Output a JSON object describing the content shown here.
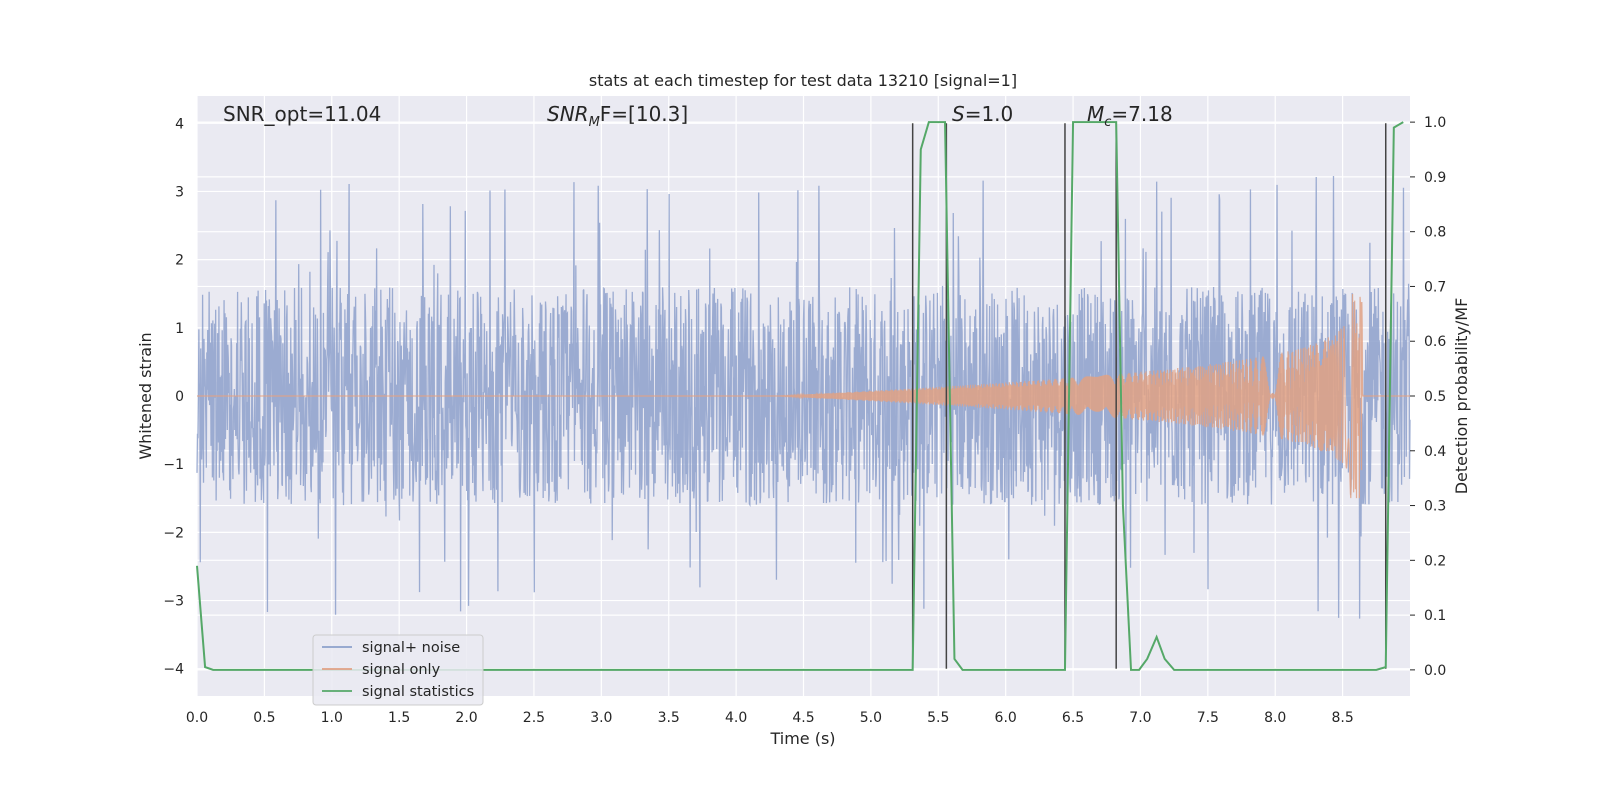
{
  "chart_data": {
    "type": "line",
    "title": "stats at each timestep for test data 13210 [signal=1]",
    "xlabel": "Time (s)",
    "ylabel_left": "Whitened strain",
    "ylabel_right": "Detection probability/MF",
    "xlim": [
      0.0,
      9.0
    ],
    "ylim_left": [
      -4.4,
      4.4
    ],
    "ylim_right": [
      -0.0477,
      1.0477
    ],
    "x_ticks": [
      "0.0",
      "0.5",
      "1.0",
      "1.5",
      "2.0",
      "2.5",
      "3.0",
      "3.5",
      "4.0",
      "4.5",
      "5.0",
      "5.5",
      "6.0",
      "6.5",
      "7.0",
      "7.5",
      "8.0",
      "8.5"
    ],
    "y_left_ticks": [
      "4",
      "3",
      "2",
      "1",
      "0",
      "−1",
      "−2",
      "−3",
      "−4"
    ],
    "y_right_ticks": [
      "1.0",
      "0.9",
      "0.8",
      "0.7",
      "0.6",
      "0.5",
      "0.4",
      "0.3",
      "0.2",
      "0.1",
      "0.0"
    ],
    "grid": true,
    "legend_placement": "lower-left",
    "annotations": {
      "snr_opt": "SNR_opt=11.04",
      "snr_mf_main": "SNR",
      "snr_mf_sub": "M",
      "snr_mf_rest": "F=[10.3]",
      "s_main": "S",
      "s_rest": "=1.0",
      "mc_main": "M",
      "mc_sub": "c",
      "mc_rest": "=7.18"
    },
    "vertical_markers_s": [
      5.31,
      5.56,
      6.44,
      6.82,
      8.82
    ],
    "series": [
      {
        "name": "signal+ noise",
        "color": "#8da0cb",
        "axis": "left",
        "description_values": "noise envelope approx ±1.6, spikes to about ±3.2 (max 4.0)",
        "envelope_core": 1.6
      },
      {
        "name": "signal only",
        "color": "#e0a184",
        "axis": "left",
        "chirp_start_s": 4.3,
        "chirp_peak_s": 8.65,
        "chirp_peak_amp": 1.5
      },
      {
        "name": "signal statistics",
        "color": "#55a868",
        "axis": "right",
        "x": [
          0.0,
          0.06,
          0.12,
          5.31,
          5.37,
          5.43,
          5.55,
          5.62,
          5.68,
          6.44,
          6.5,
          6.82,
          6.87,
          6.93,
          6.99,
          7.05,
          7.12,
          7.18,
          7.25,
          7.31,
          8.75,
          8.82,
          8.88,
          8.95
        ],
        "y": [
          0.19,
          0.005,
          0.0,
          0.0,
          0.95,
          1.0,
          1.0,
          0.02,
          0.0,
          0.0,
          1.0,
          1.0,
          0.3,
          0.0,
          0.0,
          0.02,
          0.06,
          0.02,
          0.0,
          0.0,
          0.0,
          0.005,
          0.99,
          1.0
        ]
      }
    ]
  },
  "legend": {
    "items": [
      {
        "label": "signal+ noise",
        "color": "#8da0cb"
      },
      {
        "label": "signal only",
        "color": "#e0a184"
      },
      {
        "label": "signal statistics",
        "color": "#55a868"
      }
    ]
  },
  "colors": {
    "plot_background": "#eaeaf2",
    "grid": "#ffffff",
    "marker_line": "#444444"
  }
}
